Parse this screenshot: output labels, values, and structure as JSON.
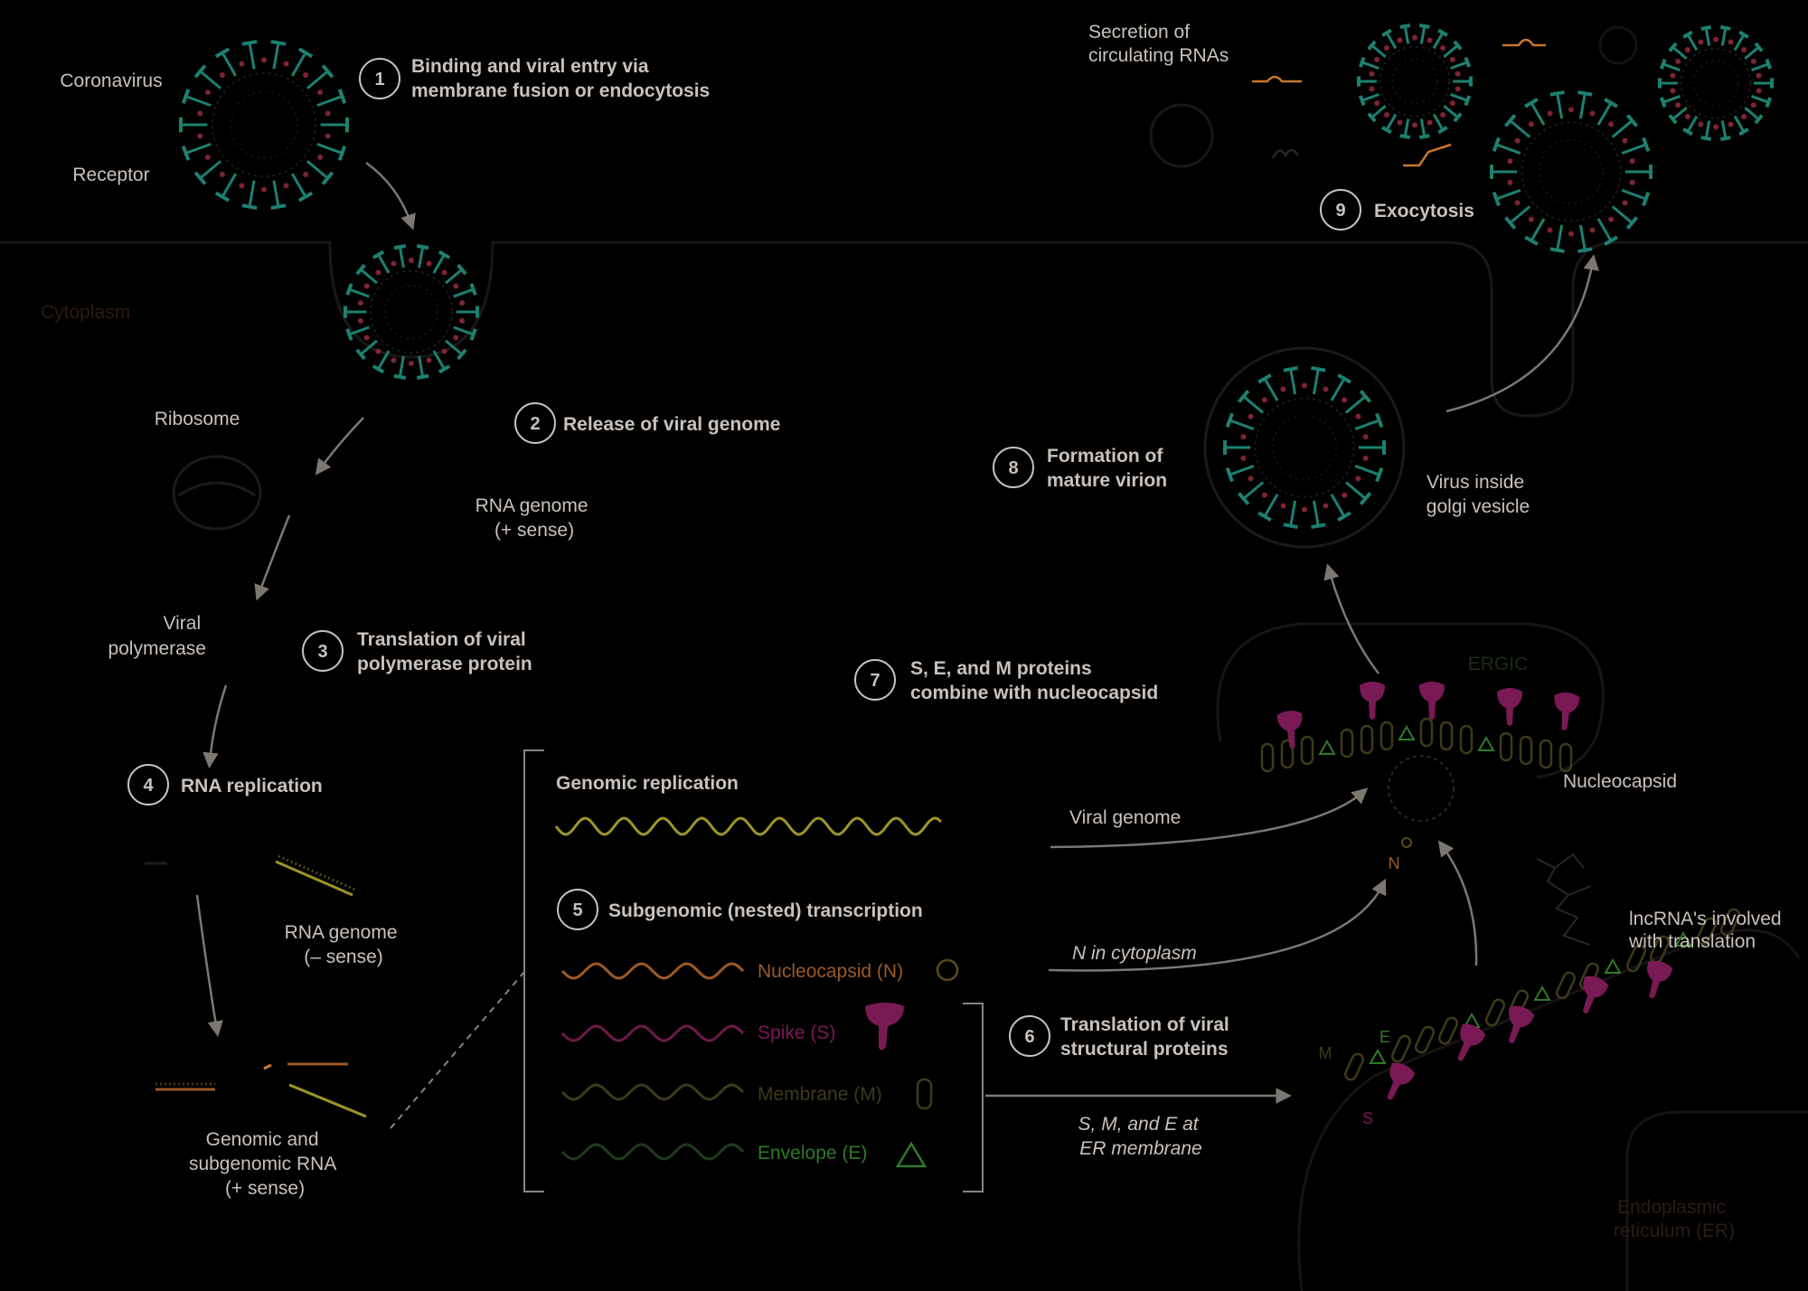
{
  "colors": {
    "background": "#000000",
    "text": "#c9c1bb",
    "text_dim": "#3f2a1f",
    "arrow": "#7d7772",
    "virus_teal": "#1d8070",
    "virus_red": "#7d2530",
    "genomic": "#9c9527",
    "nucleocapsid": "#9a5a27",
    "spike": "#8a1f5e",
    "membrane": "#4e4a1f",
    "envelope": "#2f7a28",
    "rna_orange": "#c8782c"
  },
  "labels": {
    "coronavirus": "Coronavirus",
    "receptor": "Receptor",
    "cytoplasm": "Cytoplasm",
    "ribosome": "Ribosome",
    "rna_genome_plus": [
      "RNA genome",
      "(+ sense)"
    ],
    "viral_polymerase": [
      "Viral",
      "polymerase"
    ],
    "rna_genome_minus": [
      "RNA genome",
      "(– sense)"
    ],
    "genomic_subgenomic": [
      "Genomic and",
      "subgenomic RNA",
      "(+ sense)"
    ],
    "genomic_replication": "Genomic replication",
    "nucleocapsid_n": "Nucleocapsid (N)",
    "spike_s": "Spike (S)",
    "membrane_m": "Membrane (M)",
    "envelope_e": "Envelope (E)",
    "viral_genome": "Viral genome",
    "n_in_cytoplasm": "N in cytoplasm",
    "smE_at_er": [
      "S, M, and E at",
      "ER membrane"
    ],
    "nucleocapsid": "Nucleocapsid",
    "lncrna": [
      "lncRNA's involved",
      "with translation"
    ],
    "ergic": "ERGIC",
    "virus_inside_golgi": [
      "Virus inside",
      "golgi vesicle"
    ],
    "secretion": [
      "Secretion of",
      "circulating RNAs"
    ],
    "er": [
      "Endoplasmic",
      "reticulum (ER)"
    ],
    "letter_n": "N",
    "letter_m": "M",
    "letter_e": "E",
    "letter_s": "S"
  },
  "steps": [
    {
      "num": "1",
      "lines": [
        "Binding and viral entry via",
        "membrane fusion or endocytosis"
      ]
    },
    {
      "num": "2",
      "lines": [
        "Release of viral genome"
      ]
    },
    {
      "num": "3",
      "lines": [
        "Translation of viral",
        "polymerase protein"
      ]
    },
    {
      "num": "4",
      "lines": [
        "RNA replication"
      ]
    },
    {
      "num": "5",
      "lines": [
        "Subgenomic (nested) transcription"
      ]
    },
    {
      "num": "6",
      "lines": [
        "Translation of viral",
        "structural proteins"
      ]
    },
    {
      "num": "7",
      "lines": [
        "S, E, and M proteins",
        "combine with nucleocapsid"
      ]
    },
    {
      "num": "8",
      "lines": [
        "Formation of",
        "mature virion"
      ]
    },
    {
      "num": "9",
      "lines": [
        "Exocytosis"
      ]
    }
  ]
}
